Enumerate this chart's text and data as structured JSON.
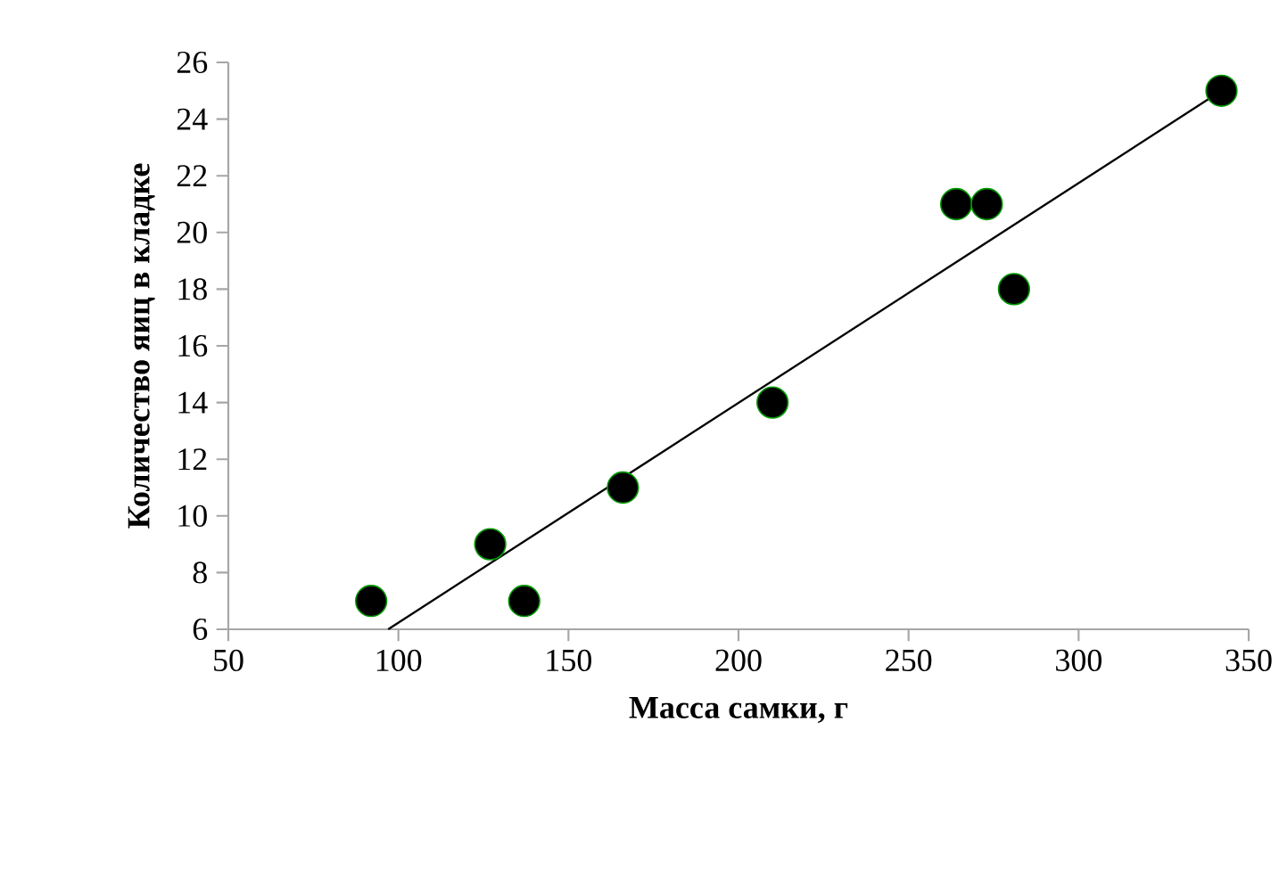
{
  "chart_data": {
    "type": "scatter",
    "xlabel": "Масса самки, г",
    "ylabel": "Количество яиц в кладке",
    "xlim": [
      50,
      350
    ],
    "xticks": [
      50,
      100,
      150,
      200,
      250,
      300,
      350
    ],
    "ylim": [
      6,
      26
    ],
    "yticks": [
      6,
      8,
      10,
      12,
      14,
      16,
      18,
      20,
      22,
      24,
      26
    ],
    "grid": false,
    "marker": "circle",
    "series": [
      {
        "color": "#000000",
        "x": [
          92,
          127,
          137,
          166,
          210,
          264,
          273,
          281,
          342
        ],
        "values": [
          7,
          9,
          7,
          11,
          14,
          21,
          21,
          18,
          25
        ]
      },
      {
        "type": "line",
        "color": "#000000",
        "marker": "none",
        "x": [
          97,
          342
        ],
        "values": [
          6,
          25
        ]
      }
    ]
  }
}
